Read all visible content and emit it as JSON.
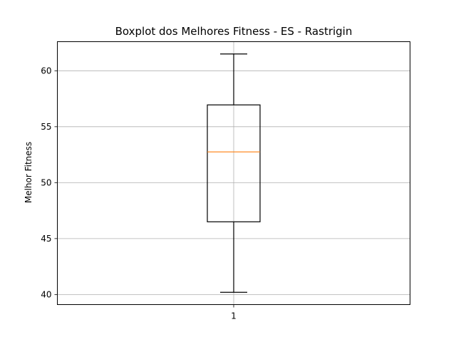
{
  "chart_data": {
    "type": "boxplot",
    "title": "Boxplot dos Melhores Fitness - ES - Rastrigin",
    "xlabel": "",
    "ylabel": "Melhor Fitness",
    "categories": [
      "1"
    ],
    "boxes": [
      {
        "category": "1",
        "whisker_low": 40.2,
        "q1": 46.5,
        "median": 52.75,
        "q3": 56.95,
        "whisker_high": 61.5
      }
    ],
    "ylim": [
      39.1,
      62.6
    ],
    "yticks": [
      40,
      45,
      50,
      55,
      60
    ],
    "ytick_labels": [
      "40",
      "45",
      "50",
      "55",
      "60"
    ],
    "grid": true,
    "colors": {
      "box": "#000000",
      "median": "#ff7f0e",
      "grid": "#b0b0b0"
    }
  }
}
